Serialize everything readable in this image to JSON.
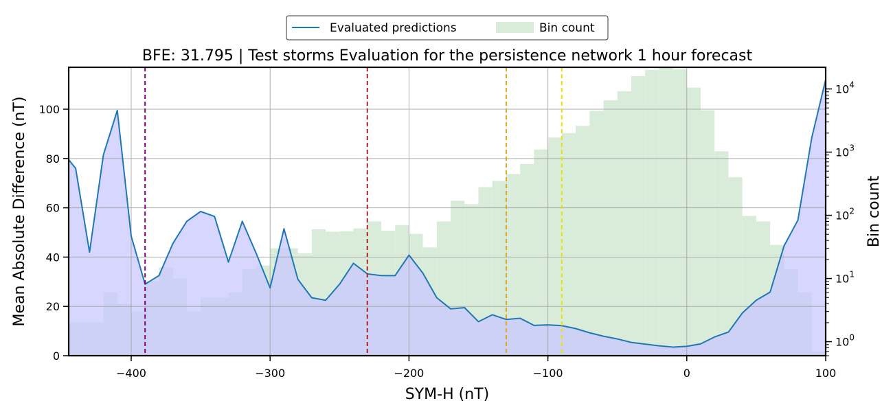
{
  "chart_data": {
    "type": "line",
    "title": "BFE: 31.795 | Test storms Evaluation for the persistence network 1 hour forecast",
    "xlabel": "SYM-H (nT)",
    "ylabel": "Mean Absolute Difference (nT)",
    "ylabel_right": "Bin count",
    "xlim": [
      -445,
      100
    ],
    "ylim": [
      0,
      117
    ],
    "ylim_right_log": [
      0.6,
      22000
    ],
    "x_ticks": [
      -400,
      -300,
      -200,
      -100,
      0,
      100
    ],
    "x_tick_labels": [
      "−400",
      "−300",
      "−200",
      "−100",
      "0",
      "100"
    ],
    "y_ticks": [
      0,
      20,
      40,
      60,
      80,
      100
    ],
    "y_tick_labels": [
      "0",
      "20",
      "40",
      "60",
      "80",
      "100"
    ],
    "y_right_ticks": [
      1,
      10,
      100,
      1000,
      10000
    ],
    "grid": true,
    "legend_position": "top-center",
    "legend": [
      {
        "label": "Evaluated predictions",
        "kind": "line",
        "color": "#1f77b4"
      },
      {
        "label": "Bin count",
        "kind": "patch",
        "color": "#d9ecda"
      }
    ],
    "series": [
      {
        "name": "Evaluated predictions",
        "color": "#1f77b4",
        "fill": "#c8c8ff",
        "x": [
          -445,
          -440,
          -430,
          -420,
          -410,
          -400,
          -390,
          -380,
          -370,
          -360,
          -350,
          -340,
          -330,
          -320,
          -310,
          -300,
          -290,
          -280,
          -270,
          -260,
          -250,
          -240,
          -230,
          -220,
          -210,
          -200,
          -190,
          -180,
          -170,
          -160,
          -150,
          -140,
          -130,
          -120,
          -110,
          -100,
          -90,
          -80,
          -70,
          -60,
          -50,
          -40,
          -30,
          -20,
          -10,
          0,
          10,
          20,
          30,
          40,
          50,
          60,
          70,
          80,
          90,
          100
        ],
        "y": [
          79.5,
          76,
          42,
          81.5,
          99.5,
          48.5,
          29,
          32.5,
          45.5,
          54.5,
          58.5,
          56.5,
          38,
          54.5,
          41.5,
          27.5,
          51.5,
          31,
          23.5,
          22.5,
          29,
          37.5,
          33.2,
          32.5,
          32.5,
          40.8,
          33.5,
          23.5,
          19,
          19.5,
          13.8,
          16.6,
          14.7,
          15.2,
          12.3,
          12.5,
          12.2,
          11,
          9.3,
          7.9,
          6.8,
          5.4,
          4.7,
          4,
          3.5,
          3.8,
          4.8,
          7.6,
          9.6,
          17.3,
          22.5,
          25.8,
          44.5,
          55,
          88.5,
          112
        ]
      },
      {
        "name": "Bin count",
        "color": "#d9ecda",
        "bin_width": 10,
        "bin_left": [
          -445,
          -430,
          -420,
          -410,
          -400,
          -390,
          -380,
          -370,
          -360,
          -350,
          -340,
          -330,
          -320,
          -310,
          -300,
          -290,
          -280,
          -270,
          -260,
          -250,
          -240,
          -230,
          -220,
          -210,
          -200,
          -190,
          -180,
          -170,
          -160,
          -150,
          -140,
          -130,
          -120,
          -110,
          -100,
          -90,
          -80,
          -70,
          -60,
          -50,
          -40,
          -30,
          -20,
          -10,
          0,
          10,
          20,
          30,
          40,
          50,
          60,
          70,
          80,
          90
        ],
        "counts": [
          2,
          2,
          6,
          4,
          3,
          9,
          15,
          10,
          3,
          5,
          5,
          6,
          14,
          16,
          30,
          30,
          25,
          60,
          55,
          56,
          62,
          80,
          57,
          70,
          51,
          31,
          80,
          170,
          150,
          280,
          350,
          450,
          650,
          1100,
          1700,
          2000,
          2600,
          4500,
          6600,
          9200,
          16000,
          20000,
          22000,
          20500,
          10500,
          4600,
          1030,
          400,
          98,
          80,
          34,
          14,
          6,
          0.7
        ]
      }
    ],
    "reference_lines": [
      {
        "x": -390,
        "color": "#800080"
      },
      {
        "x": -230,
        "color": "#b22222"
      },
      {
        "x": -130,
        "color": "#daa520"
      },
      {
        "x": -90,
        "color": "#e6e600"
      }
    ]
  }
}
